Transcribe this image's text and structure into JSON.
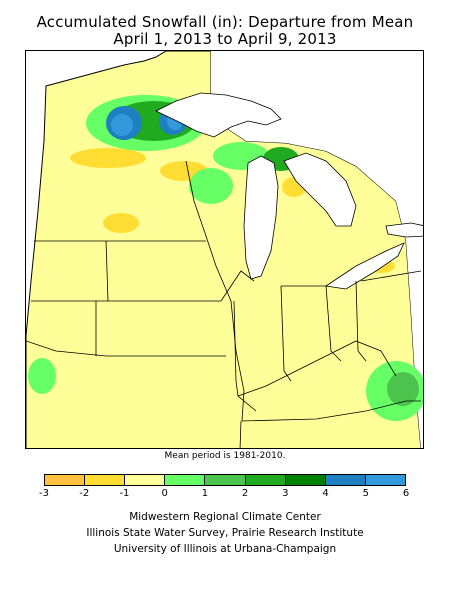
{
  "title": {
    "line1": "Accumulated Snowfall (in): Departure from Mean",
    "line2": "April 1, 2013 to April 9, 2013"
  },
  "map": {
    "region": "Midwest United States",
    "colors": {
      "lake": "#ffffff",
      "outside": "#ffffff",
      "base": "#ffff99"
    }
  },
  "mean_note": "Mean period is 1981-2010.",
  "legend": {
    "ticks": [
      "-3",
      "-2",
      "-1",
      "0",
      "1",
      "2",
      "3",
      "4",
      "5",
      "6"
    ],
    "colors": [
      "#ffbf3f",
      "#ffdd33",
      "#ffff99",
      "#66ff66",
      "#4cc34c",
      "#1faa1f",
      "#008000",
      "#1f7fbf",
      "#3399dd"
    ]
  },
  "credits": [
    "Midwestern Regional Climate Center",
    "Illinois State Water Survey, Prairie Research Institute",
    "University of Illinois at Urbana-Champaign"
  ]
}
